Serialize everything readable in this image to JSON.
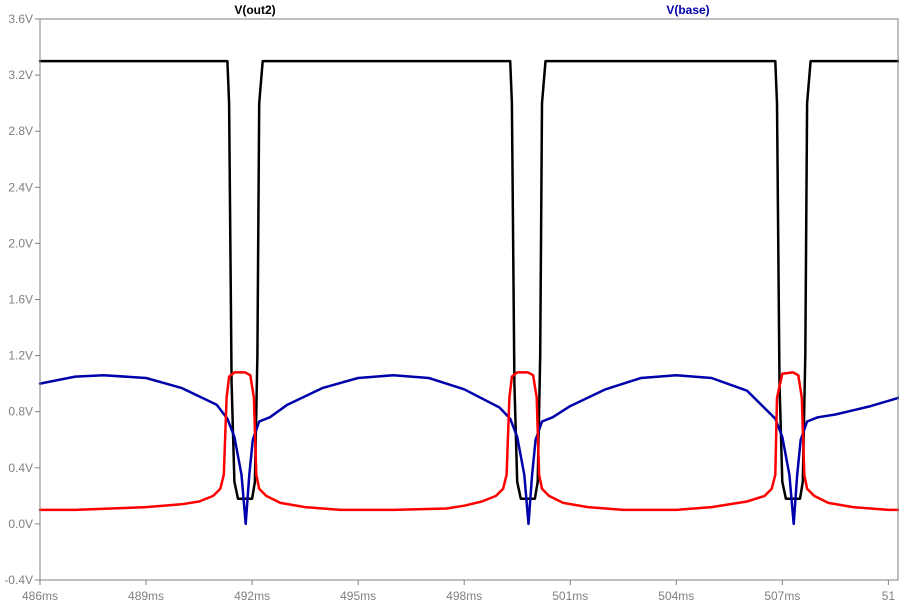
{
  "chart_data": {
    "type": "line",
    "title": "",
    "xlabel": "",
    "ylabel": "",
    "xlim": [
      486,
      510.3
    ],
    "ylim": [
      -0.4,
      3.6
    ],
    "grid": false,
    "x_ticks": [
      {
        "value": 486,
        "label": "486ms"
      },
      {
        "value": 489,
        "label": "489ms"
      },
      {
        "value": 492,
        "label": "492ms"
      },
      {
        "value": 495,
        "label": "495ms"
      },
      {
        "value": 498,
        "label": "498ms"
      },
      {
        "value": 501,
        "label": "501ms"
      },
      {
        "value": 504,
        "label": "504ms"
      },
      {
        "value": 507,
        "label": "507ms"
      },
      {
        "value": 510,
        "label": "51"
      }
    ],
    "y_ticks": [
      {
        "value": -0.4,
        "label": "-0.4V"
      },
      {
        "value": 0.0,
        "label": "0.0V"
      },
      {
        "value": 0.4,
        "label": "0.4V"
      },
      {
        "value": 0.8,
        "label": "0.8V"
      },
      {
        "value": 1.2,
        "label": "1.2V"
      },
      {
        "value": 1.6,
        "label": "1.6V"
      },
      {
        "value": 2.0,
        "label": "2.0V"
      },
      {
        "value": 2.4,
        "label": "2.4V"
      },
      {
        "value": 2.8,
        "label": "2.8V"
      },
      {
        "value": 3.2,
        "label": "3.2V"
      },
      {
        "value": 3.6,
        "label": "3.6V"
      }
    ],
    "series": [
      {
        "name": "V(out2)",
        "color": "#000000",
        "x": [
          486.0,
          491.3,
          491.35,
          491.42,
          491.5,
          491.6,
          491.8,
          492.0,
          492.08,
          492.15,
          492.2,
          492.3,
          499.3,
          499.35,
          499.42,
          499.5,
          499.6,
          499.8,
          500.0,
          500.08,
          500.15,
          500.2,
          500.3,
          506.8,
          506.85,
          506.92,
          507.0,
          507.1,
          507.3,
          507.5,
          507.58,
          507.65,
          507.7,
          507.8,
          510.3
        ],
        "values": [
          3.3,
          3.3,
          3.0,
          1.0,
          0.3,
          0.18,
          0.18,
          0.18,
          0.3,
          1.2,
          3.0,
          3.3,
          3.3,
          3.0,
          1.0,
          0.3,
          0.18,
          0.18,
          0.18,
          0.3,
          1.2,
          3.0,
          3.3,
          3.3,
          3.0,
          1.0,
          0.3,
          0.18,
          0.18,
          0.18,
          0.3,
          1.2,
          3.0,
          3.3,
          3.3
        ]
      },
      {
        "name": "V(base)",
        "color": "#0000aa",
        "x": [
          486.0,
          487.0,
          487.8,
          489.0,
          490.0,
          491.0,
          491.3,
          491.5,
          491.7,
          491.82,
          491.92,
          492.02,
          492.2,
          492.5,
          493.0,
          494.0,
          495.0,
          496.0,
          497.0,
          498.0,
          499.0,
          499.3,
          499.5,
          499.7,
          499.82,
          499.92,
          500.02,
          500.2,
          500.5,
          501.0,
          502.0,
          503.0,
          504.0,
          505.0,
          506.0,
          506.8,
          507.0,
          507.2,
          507.32,
          507.42,
          507.52,
          507.7,
          508.0,
          508.5,
          509.0,
          509.5,
          510.3
        ],
        "values": [
          1.0,
          1.05,
          1.06,
          1.04,
          0.97,
          0.85,
          0.75,
          0.62,
          0.35,
          0.0,
          0.35,
          0.6,
          0.73,
          0.76,
          0.85,
          0.97,
          1.04,
          1.06,
          1.04,
          0.96,
          0.83,
          0.75,
          0.62,
          0.35,
          0.0,
          0.35,
          0.6,
          0.73,
          0.76,
          0.84,
          0.96,
          1.04,
          1.06,
          1.04,
          0.95,
          0.75,
          0.62,
          0.35,
          0.0,
          0.35,
          0.6,
          0.73,
          0.76,
          0.78,
          0.81,
          0.84,
          0.9
        ]
      },
      {
        "name": "",
        "color": "#ff0000",
        "x": [
          486.0,
          487.0,
          488.0,
          489.0,
          490.0,
          490.5,
          490.9,
          491.1,
          491.2,
          491.28,
          491.35,
          491.5,
          491.8,
          491.95,
          492.05,
          492.12,
          492.2,
          492.4,
          492.8,
          493.5,
          494.5,
          496.0,
          497.5,
          498.0,
          498.5,
          498.9,
          499.1,
          499.2,
          499.28,
          499.35,
          499.5,
          499.8,
          499.95,
          500.05,
          500.12,
          500.2,
          500.4,
          500.8,
          501.5,
          502.5,
          504.0,
          505.0,
          506.0,
          506.5,
          506.7,
          506.8,
          506.85,
          507.0,
          507.3,
          507.45,
          507.55,
          507.62,
          507.7,
          507.9,
          508.3,
          509.0,
          510.0,
          510.3
        ],
        "values": [
          0.1,
          0.1,
          0.11,
          0.12,
          0.14,
          0.16,
          0.2,
          0.25,
          0.35,
          0.9,
          1.05,
          1.08,
          1.08,
          1.06,
          0.9,
          0.35,
          0.25,
          0.2,
          0.15,
          0.12,
          0.1,
          0.1,
          0.11,
          0.13,
          0.16,
          0.2,
          0.25,
          0.35,
          0.9,
          1.05,
          1.08,
          1.08,
          1.06,
          0.9,
          0.35,
          0.25,
          0.2,
          0.15,
          0.12,
          0.1,
          0.1,
          0.12,
          0.16,
          0.2,
          0.25,
          0.35,
          0.9,
          1.07,
          1.08,
          1.06,
          0.9,
          0.35,
          0.25,
          0.2,
          0.15,
          0.12,
          0.1,
          0.1
        ]
      }
    ]
  }
}
